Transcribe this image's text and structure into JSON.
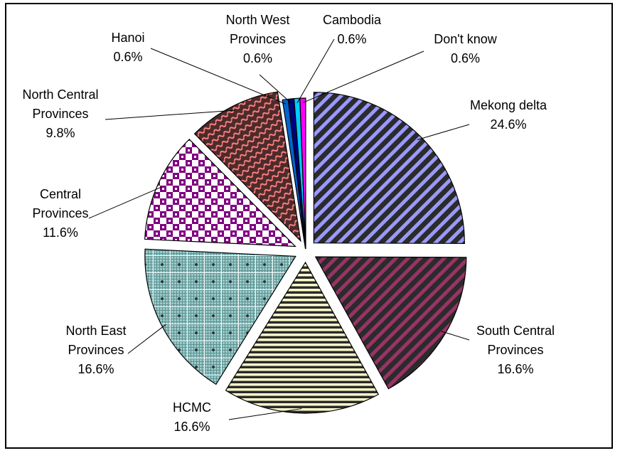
{
  "chart_data": {
    "type": "pie",
    "title": "",
    "slices": [
      {
        "label": "Mekong delta",
        "value": 24.6,
        "value_label": "24.6%",
        "colors": {
          "bg": "#2b2b2b",
          "fg": "#9999ff"
        },
        "pattern": "diag-right"
      },
      {
        "label": "South Central Provinces",
        "value": 16.6,
        "value_label": "16.6%",
        "colors": {
          "bg": "#2b2b2b",
          "fg": "#993366"
        },
        "pattern": "diag-right"
      },
      {
        "label": "HCMC",
        "value": 16.6,
        "value_label": "16.6%",
        "colors": {
          "bg": "#2b2b2b",
          "fg": "#ffffcc"
        },
        "pattern": "horizontal"
      },
      {
        "label": "North East Provinces",
        "value": 16.6,
        "value_label": "16.6%",
        "colors": {
          "bg": "#99cccc",
          "fg": "#333333"
        },
        "pattern": "grid-dots"
      },
      {
        "label": "Central Provinces",
        "value": 11.6,
        "value_label": "11.6%",
        "colors": {
          "bg": "#ffffff",
          "fg": "#800080"
        },
        "pattern": "checker"
      },
      {
        "label": "North Central Provinces",
        "value": 9.8,
        "value_label": "9.8%",
        "colors": {
          "bg": "#4d2b2b",
          "fg": "#ff8080"
        },
        "pattern": "wave"
      },
      {
        "label": "Hanoi",
        "value": 0.6,
        "value_label": "0.6%",
        "colors": {
          "bg": "#0066cc",
          "fg": "#0066cc"
        },
        "pattern": "solid"
      },
      {
        "label": "North West Provinces",
        "value": 0.6,
        "value_label": "0.6%",
        "colors": {
          "bg": "#000080",
          "fg": "#000080"
        },
        "pattern": "solid"
      },
      {
        "label": "Cambodia",
        "value": 0.6,
        "value_label": "0.6%",
        "colors": {
          "bg": "#00ccff",
          "fg": "#00ccff"
        },
        "pattern": "solid"
      },
      {
        "label": "Don't know",
        "value": 0.6,
        "value_label": "0.6%",
        "colors": {
          "bg": "#ff00ff",
          "fg": "#ff00ff"
        },
        "pattern": "solid"
      }
    ],
    "labels": [
      {
        "lines": [
          "Mekong delta",
          "24.6%"
        ]
      },
      {
        "lines": [
          "South Central",
          "Provinces",
          "16.6%"
        ]
      },
      {
        "lines": [
          "HCMC",
          "16.6%"
        ]
      },
      {
        "lines": [
          "North East",
          "Provinces",
          "16.6%"
        ]
      },
      {
        "lines": [
          "Central",
          "Provinces",
          "11.6%"
        ]
      },
      {
        "lines": [
          "North Central",
          "Provinces",
          "9.8%"
        ]
      },
      {
        "lines": [
          "Hanoi",
          "0.6%"
        ]
      },
      {
        "lines": [
          "North West",
          "Provinces",
          "0.6%"
        ]
      },
      {
        "lines": [
          "Cambodia",
          "0.6%"
        ]
      },
      {
        "lines": [
          "Don't know",
          "0.6%"
        ]
      }
    ],
    "legend": "none",
    "start_angle": "12 o'clock, clockwise",
    "exploded": true
  }
}
